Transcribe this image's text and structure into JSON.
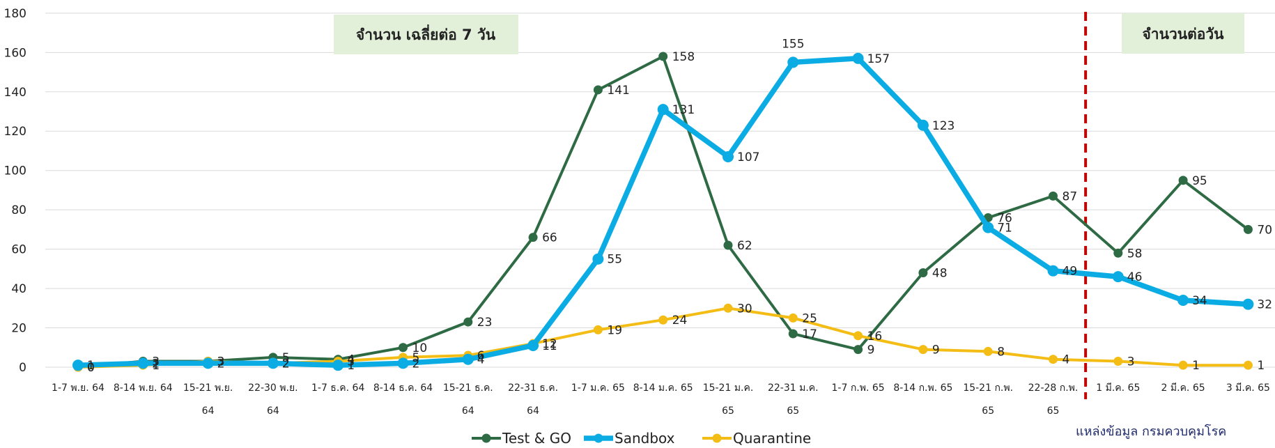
{
  "chart_data": {
    "type": "line",
    "categories": [
      [
        "1-7 พ.ย. 64"
      ],
      [
        "8-14 พ.ย. 64"
      ],
      [
        "15-21 พ.ย.",
        "64"
      ],
      [
        "22-30 พ.ย.",
        "64"
      ],
      [
        "1-7 ธ.ค. 64"
      ],
      [
        "8-14 ธ.ค. 64"
      ],
      [
        "15-21 ธ.ค.",
        "64"
      ],
      [
        "22-31 ธ.ค.",
        "64"
      ],
      [
        "1-7 ม.ค. 65"
      ],
      [
        "8-14 ม.ค. 65"
      ],
      [
        "15-21 ม.ค.",
        "65"
      ],
      [
        "22-31 ม.ค.",
        "65"
      ],
      [
        "1-7 ก.พ. 65"
      ],
      [
        "8-14 ก.พ. 65"
      ],
      [
        "15-21 ก.พ.",
        "65"
      ],
      [
        "22-28 ก.พ.",
        "65"
      ],
      [
        "1 มี.ค. 65"
      ],
      [
        "2 มี.ค. 65"
      ],
      [
        "3 มี.ค. 65"
      ]
    ],
    "series": [
      {
        "name": "Test & GO",
        "color": "#2e6b45",
        "values": [
          0,
          3,
          3,
          5,
          4,
          10,
          23,
          66,
          141,
          158,
          62,
          17,
          9,
          48,
          76,
          87,
          58,
          95,
          70
        ]
      },
      {
        "name": "Sandbox",
        "color": "#0aace3",
        "values": [
          1,
          2,
          2,
          2,
          1,
          2,
          4,
          11,
          55,
          131,
          107,
          155,
          157,
          123,
          71,
          49,
          46,
          34,
          32
        ]
      },
      {
        "name": "Quarantine",
        "color": "#f3bd15",
        "values": [
          0,
          1,
          3,
          2,
          3,
          5,
          6,
          12,
          19,
          24,
          30,
          25,
          16,
          9,
          8,
          4,
          3,
          1,
          1
        ]
      }
    ],
    "yticks": [
      0,
      20,
      40,
      60,
      80,
      100,
      120,
      140,
      160,
      180
    ],
    "ylim": [
      0,
      180
    ],
    "grid": true,
    "legend_position": "bottom",
    "divider_after_category": 15,
    "annotations": {
      "weekly": "จำนวน เฉลี่ยต่อ 7 วัน",
      "daily": "จำนวนต่อวัน"
    },
    "source": "แหล่งข้อมูล  กรมควบคุมโรค"
  }
}
